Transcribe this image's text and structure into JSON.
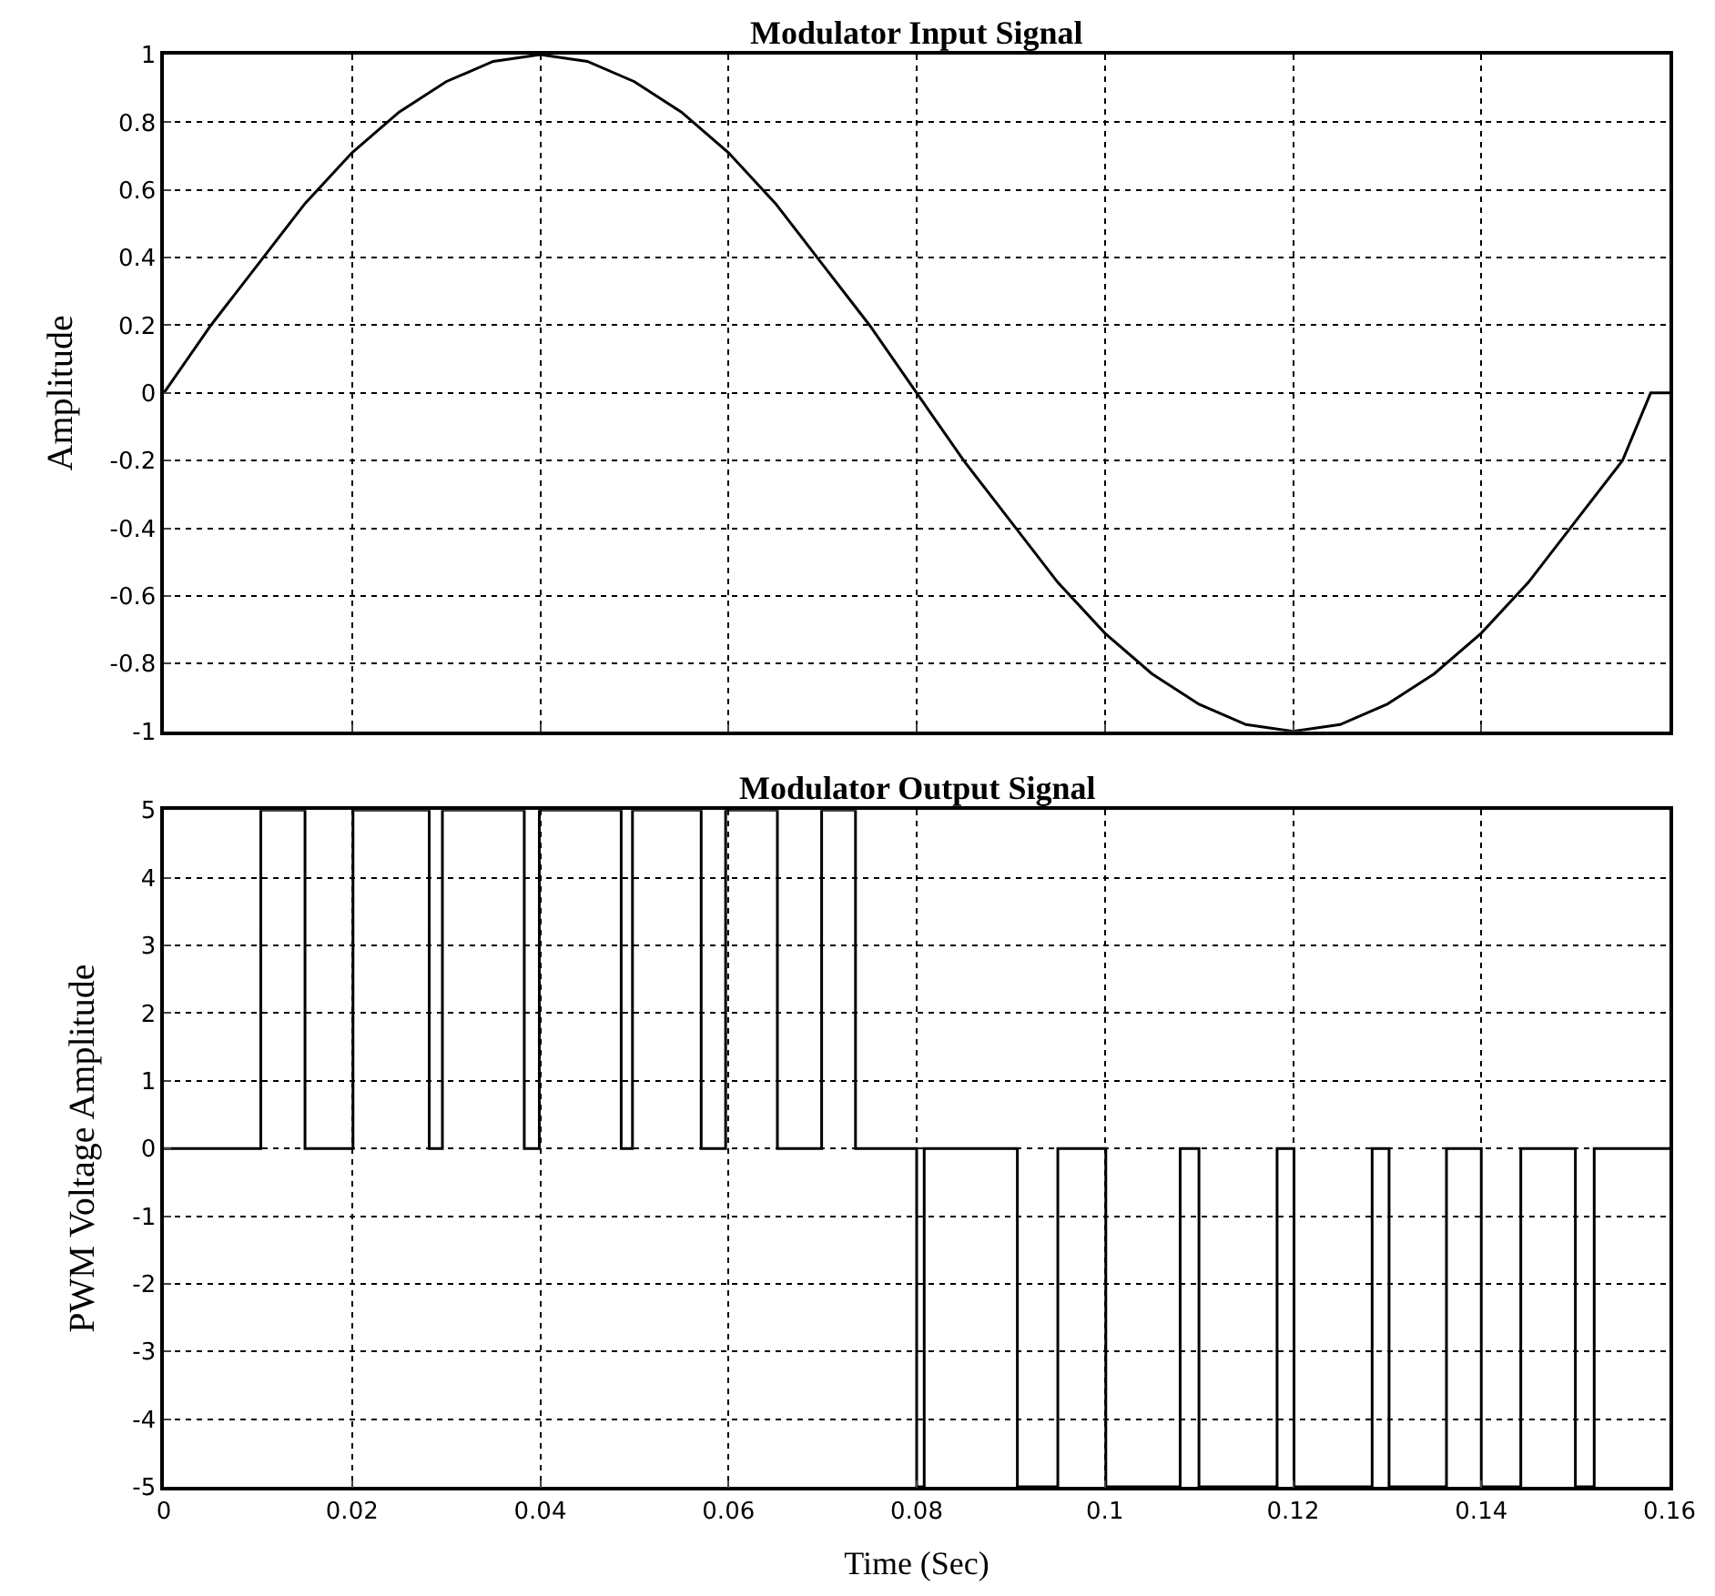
{
  "chart_data": [
    {
      "type": "line",
      "title": "Modulator Input Signal",
      "ylabel": "Amplitude",
      "x": [
        0,
        0.005,
        0.01,
        0.015,
        0.02,
        0.025,
        0.03,
        0.035,
        0.04,
        0.045,
        0.05,
        0.055,
        0.06,
        0.065,
        0.07,
        0.075,
        0.08,
        0.085,
        0.09,
        0.095,
        0.1,
        0.105,
        0.11,
        0.115,
        0.12,
        0.125,
        0.13,
        0.135,
        0.14,
        0.145,
        0.15,
        0.155,
        0.158,
        0.16
      ],
      "series": [
        {
          "color": "#000000",
          "values": [
            0,
            0.2,
            0.38,
            0.56,
            0.71,
            0.83,
            0.92,
            0.98,
            1,
            0.98,
            0.92,
            0.83,
            0.71,
            0.56,
            0.38,
            0.2,
            0,
            -0.2,
            -0.38,
            -0.56,
            -0.71,
            -0.83,
            -0.92,
            -0.98,
            -1,
            -0.98,
            -0.92,
            -0.83,
            -0.71,
            -0.56,
            -0.38,
            -0.2,
            0,
            0
          ]
        }
      ],
      "xlim": [
        0,
        0.16
      ],
      "xticks": [
        0,
        0.02,
        0.04,
        0.06,
        0.08,
        0.1,
        0.12,
        0.14,
        0.16
      ],
      "ylim": [
        -1,
        1
      ],
      "yticks": [
        -1,
        -0.8,
        -0.6,
        -0.4,
        -0.2,
        0,
        0.2,
        0.4,
        0.6,
        0.8,
        1
      ],
      "grid": true,
      "tick_labels": "y"
    },
    {
      "type": "step",
      "title": "Modulator Output Signal",
      "xlabel": "Time (Sec)",
      "ylabel": "PWM Voltage Amplitude",
      "x": [
        0,
        0.0103,
        0.015,
        0.0201,
        0.0282,
        0.0296,
        0.0383,
        0.0399,
        0.0486,
        0.0498,
        0.0571,
        0.0597,
        0.0652,
        0.0699,
        0.0735,
        0.08,
        0.0808,
        0.0907,
        0.095,
        0.1001,
        0.108,
        0.11,
        0.1183,
        0.1201,
        0.1284,
        0.1302,
        0.1363,
        0.14,
        0.1442,
        0.15,
        0.152,
        0.16
      ],
      "series": [
        {
          "color": "#000000",
          "values": [
            0,
            5,
            0,
            5,
            0,
            5,
            0,
            5,
            0,
            5,
            0,
            5,
            0,
            5,
            0,
            -5,
            0,
            -5,
            0,
            -5,
            0,
            -5,
            0,
            -5,
            0,
            -5,
            0,
            -5,
            0,
            -5,
            0,
            0
          ]
        }
      ],
      "xlim": [
        0,
        0.16
      ],
      "xticks": [
        0,
        0.02,
        0.04,
        0.06,
        0.08,
        0.1,
        0.12,
        0.14,
        0.16
      ],
      "ylim": [
        -5,
        5
      ],
      "yticks": [
        -5,
        -4,
        -3,
        -2,
        -1,
        0,
        1,
        2,
        3,
        4,
        5
      ],
      "grid": true
    }
  ]
}
